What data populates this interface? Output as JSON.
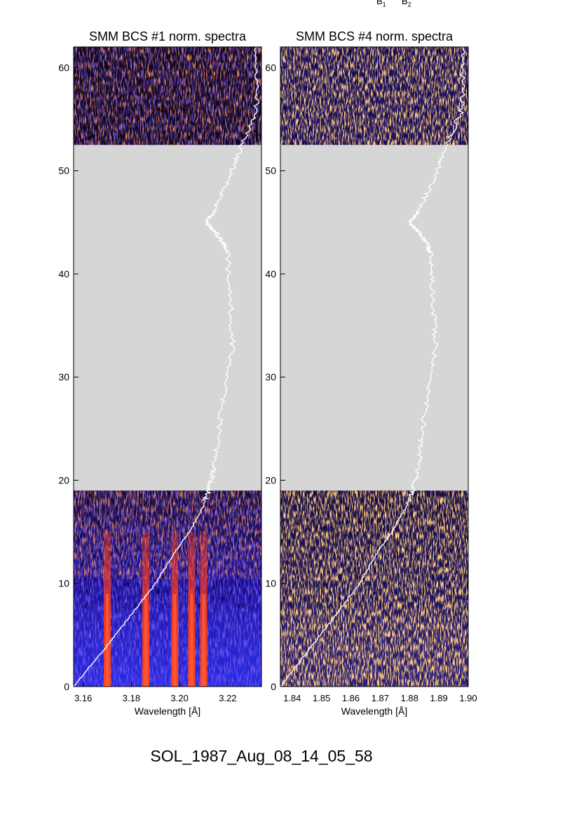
{
  "header_labels": [
    {
      "text": "B",
      "sub": "1"
    },
    {
      "text": "B",
      "sub": "2"
    }
  ],
  "caption": "SOL_1987_Aug_08_14_05_58",
  "colors": {
    "gap": "#d6d6d6",
    "profile": "#ffffff",
    "spectrum_low": "#000018",
    "spectrum_mid": "#1a1ac8",
    "spectrum_high": "#ff3a1a",
    "spectrum_top": "#ffa030"
  },
  "chart_data": [
    {
      "type": "heatmap",
      "title": "SMM BCS #1 norm. spectra",
      "xlabel": "Wavelength [Å]",
      "ylabel": "",
      "xlim": [
        3.156,
        3.234
      ],
      "ylim": [
        0,
        62
      ],
      "x_ticks": [
        "3.16",
        "3.18",
        "3.20",
        "3.22"
      ],
      "x_tick_values": [
        3.16,
        3.18,
        3.2,
        3.22
      ],
      "y_ticks": [
        "0",
        "10",
        "20",
        "30",
        "40",
        "50",
        "60"
      ],
      "y_tick_values": [
        0,
        10,
        20,
        30,
        40,
        50,
        60
      ],
      "data_gap": [
        19,
        52.5
      ],
      "spectral_lines_angstrom": [
        3.17,
        3.186,
        3.198,
        3.205,
        3.21
      ],
      "lightcurve_overlay": {
        "x": [
          3.156,
          3.17,
          3.18,
          3.19,
          3.198,
          3.204,
          3.21,
          3.212,
          3.214,
          3.216,
          3.218,
          3.222,
          3.221,
          3.22,
          3.218,
          3.215,
          3.211,
          3.214,
          3.22,
          3.225,
          3.232,
          3.232
        ],
        "y": [
          0,
          4,
          7,
          10,
          13,
          15,
          17.5,
          19,
          21,
          24,
          28,
          33,
          38,
          42,
          43,
          44,
          45,
          46,
          49,
          52,
          56,
          62
        ]
      }
    },
    {
      "type": "heatmap",
      "title": "SMM BCS #4 norm. spectra",
      "xlabel": "Wavelength [Å]",
      "ylabel": "",
      "xlim": [
        1.836,
        1.9
      ],
      "ylim": [
        0,
        62
      ],
      "x_ticks": [
        "1.84",
        "1.85",
        "1.86",
        "1.87",
        "1.88",
        "1.89",
        "1.90"
      ],
      "x_tick_values": [
        1.84,
        1.85,
        1.86,
        1.87,
        1.88,
        1.89,
        1.9
      ],
      "y_ticks": [
        "0",
        "10",
        "20",
        "30",
        "40",
        "50",
        "60"
      ],
      "y_tick_values": [
        0,
        10,
        20,
        30,
        40,
        50,
        60
      ],
      "data_gap": [
        19,
        52.5
      ],
      "lightcurve_overlay": {
        "x": [
          1.836,
          1.847,
          1.855,
          1.863,
          1.869,
          1.874,
          1.879,
          1.881,
          1.883,
          1.884,
          1.886,
          1.889,
          1.888,
          1.887,
          1.886,
          1.883,
          1.88,
          1.883,
          1.888,
          1.892,
          1.898,
          1.898
        ],
        "y": [
          0,
          4,
          7,
          10,
          13,
          15,
          17.5,
          19,
          21,
          24,
          28,
          33,
          38,
          42,
          43,
          44,
          45,
          46,
          49,
          52,
          56,
          62
        ]
      }
    }
  ]
}
